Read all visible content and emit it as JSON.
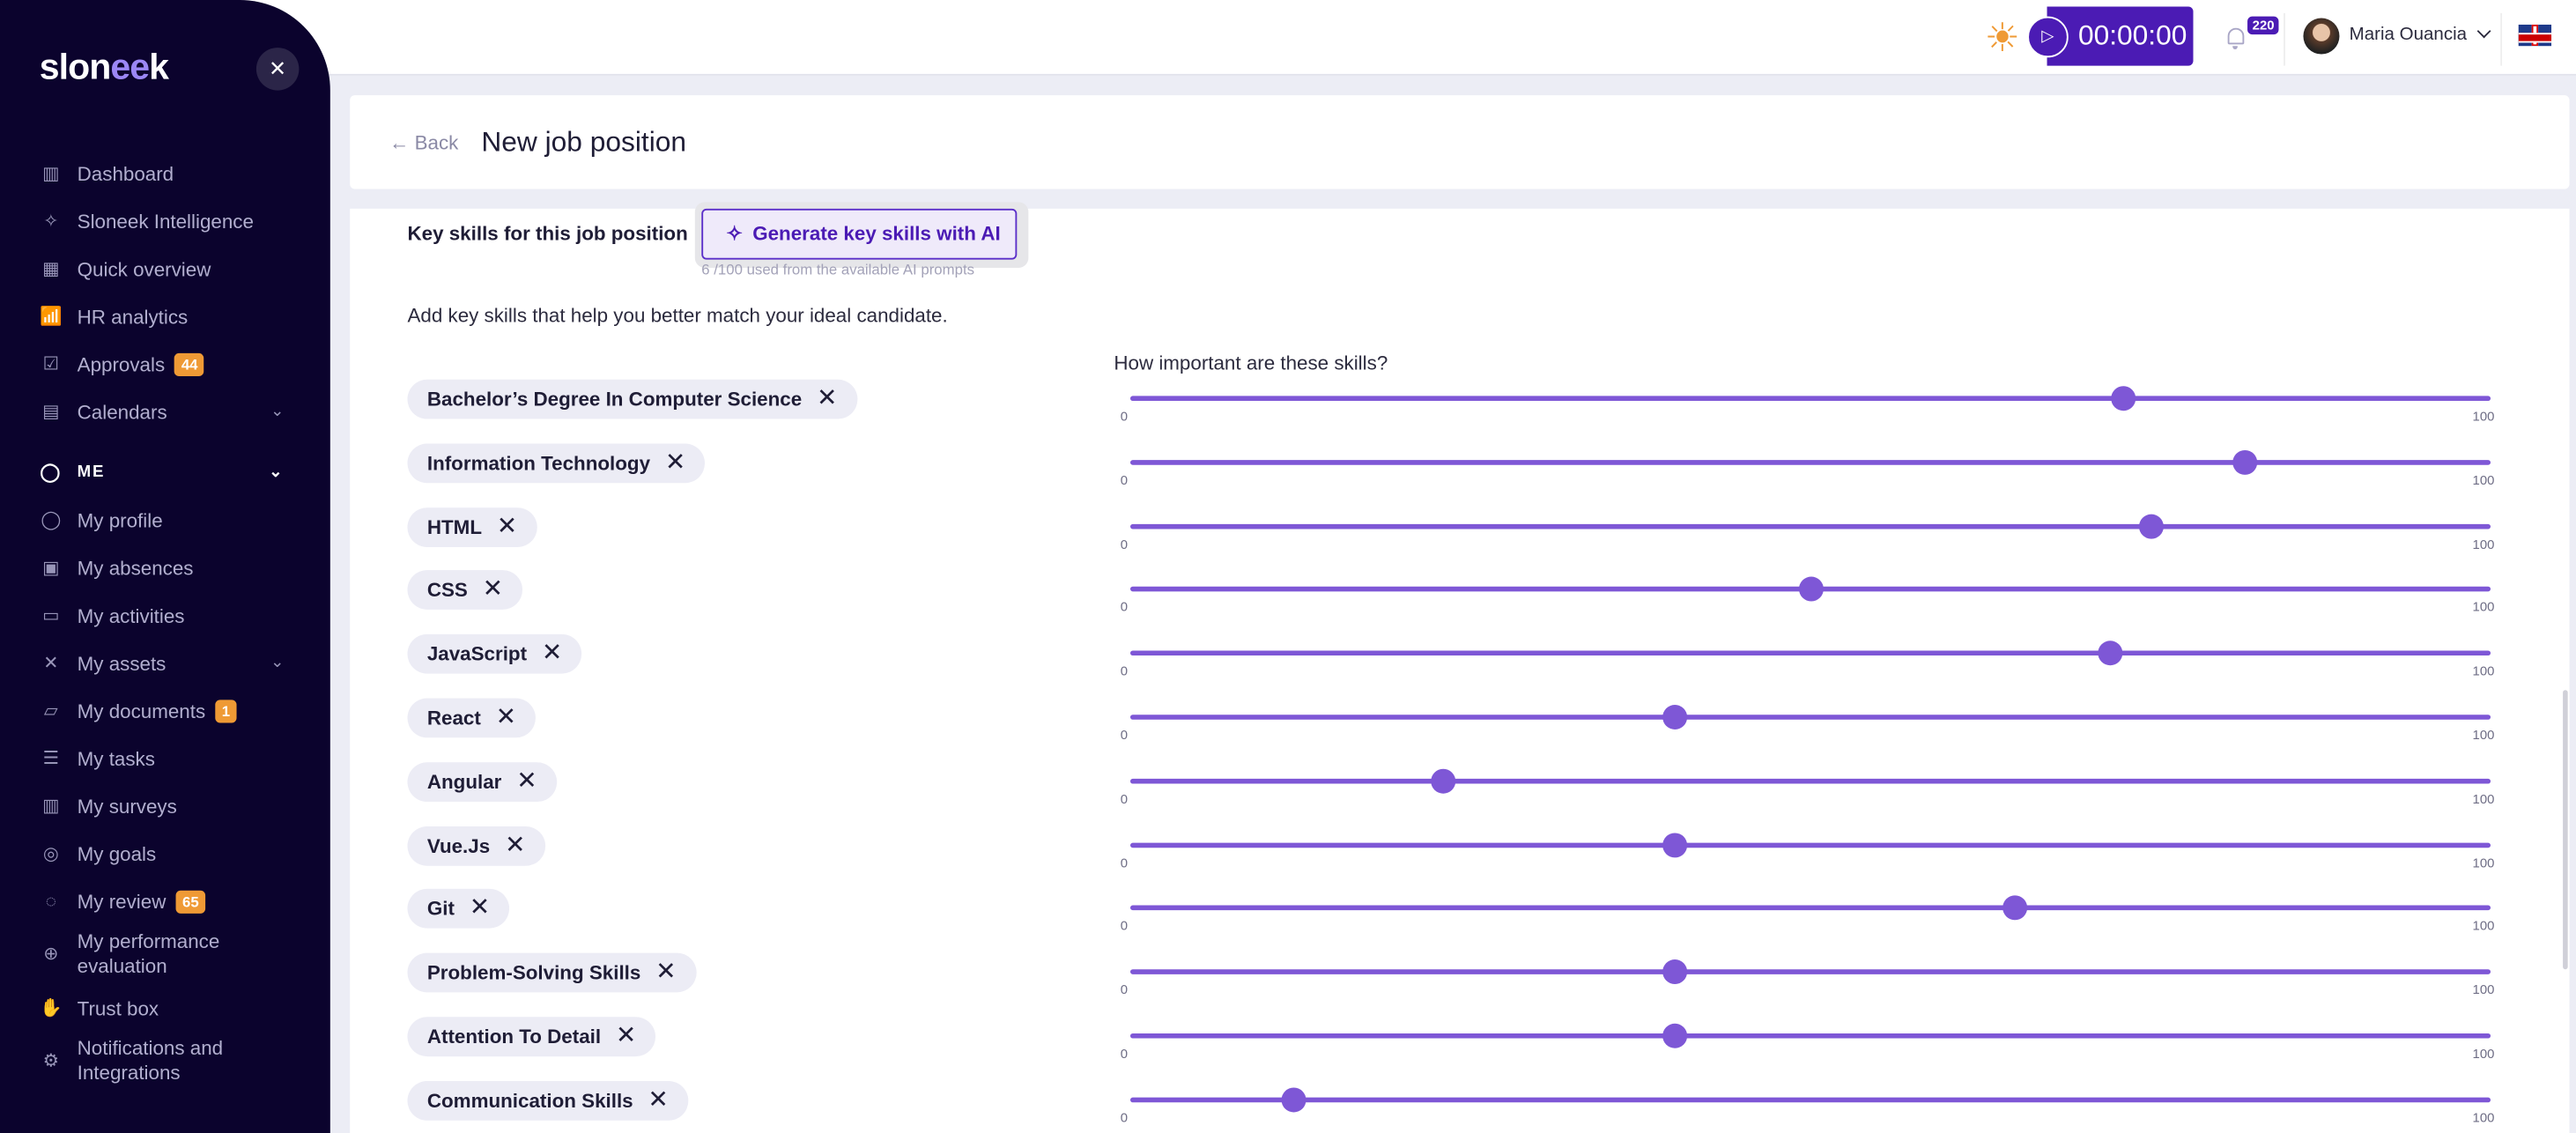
{
  "brand": {
    "logo_text_a": "slon",
    "logo_text_b": "ee",
    "logo_text_c": "k",
    "close_icon": "close-icon"
  },
  "sidebar": {
    "items": [
      {
        "label": "Dashboard",
        "icon": "layout-icon"
      },
      {
        "label": "Sloneek Intelligence",
        "icon": "sparkles-icon"
      },
      {
        "label": "Quick overview",
        "icon": "grid-icon"
      },
      {
        "label": "HR analytics",
        "icon": "analytics-icon"
      },
      {
        "label": "Approvals",
        "icon": "clipboard-check-icon",
        "badge": "44"
      },
      {
        "label": "Calendars",
        "icon": "calendar-icon",
        "chevron": true
      }
    ],
    "section": "ME",
    "me_items": [
      {
        "label": "My profile",
        "icon": "user-icon"
      },
      {
        "label": "My absences",
        "icon": "calendar-x-icon"
      },
      {
        "label": "My activities",
        "icon": "book-icon"
      },
      {
        "label": "My assets",
        "icon": "tools-icon",
        "chevron": true
      },
      {
        "label": "My documents",
        "icon": "folder-icon",
        "badge": "1"
      },
      {
        "label": "My tasks",
        "icon": "checklist-icon"
      },
      {
        "label": "My surveys",
        "icon": "chart-icon"
      },
      {
        "label": "My goals",
        "icon": "target-icon"
      },
      {
        "label": "My review",
        "icon": "chat-icon",
        "badge": "65"
      },
      {
        "label": "My performance evaluation",
        "icon": "globe-icon"
      },
      {
        "label": "Trust box",
        "icon": "hand-icon"
      },
      {
        "label": "Notifications and Integrations",
        "icon": "gear-icon"
      }
    ]
  },
  "topbar": {
    "timer": "00:00:00",
    "notifications": "220",
    "user": "Maria Ouancia",
    "language": "EN"
  },
  "header": {
    "back": "Back",
    "title": "New job position"
  },
  "skills": {
    "label": "Key skills for this job position",
    "generate_button": "Generate key skills with AI",
    "usage": "6 /100 used from the available AI prompts",
    "description": "Add key skills that help you better match your ideal candidate.",
    "importance_label": "How important are these skills?",
    "min_label": "0",
    "max_label": "100",
    "accent": "#7e57d6",
    "list": [
      {
        "name": "Bachelor’s Degree In Computer Science",
        "importance": 73
      },
      {
        "name": "Information Technology",
        "importance": 82
      },
      {
        "name": "HTML",
        "importance": 75
      },
      {
        "name": "CSS",
        "importance": 50
      },
      {
        "name": "JavaScript",
        "importance": 72
      },
      {
        "name": "React",
        "importance": 40
      },
      {
        "name": "Angular",
        "importance": 23
      },
      {
        "name": "Vue.Js",
        "importance": 40
      },
      {
        "name": "Git",
        "importance": 65
      },
      {
        "name": "Problem-Solving Skills",
        "importance": 40
      },
      {
        "name": "Attention To Detail",
        "importance": 40
      },
      {
        "name": "Communication Skills",
        "importance": 12
      }
    ]
  }
}
